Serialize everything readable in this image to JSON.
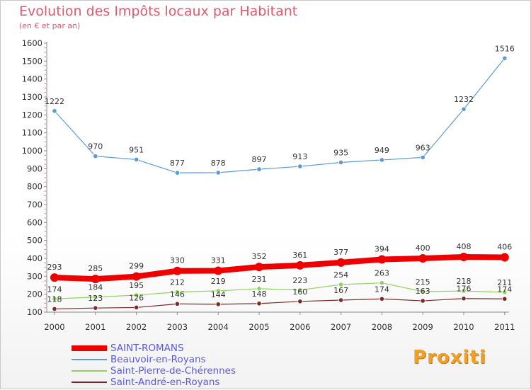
{
  "chart_data": {
    "type": "line",
    "title": "Evolution des Impôts locaux par Habitant",
    "subtitle": "(en € et par an)",
    "xlabel": "",
    "ylabel": "",
    "ylim": [
      100,
      1600
    ],
    "yticks": [
      100,
      200,
      300,
      400,
      500,
      600,
      700,
      800,
      900,
      1000,
      1100,
      1200,
      1300,
      1400,
      1500,
      1600
    ],
    "grid": false,
    "legend_position": "bottom-left",
    "categories": [
      "2000",
      "2001",
      "2002",
      "2003",
      "2004",
      "2005",
      "2006",
      "2007",
      "2008",
      "2009",
      "2010",
      "2011"
    ],
    "series": [
      {
        "name": "SAINT-ROMANS",
        "color": "#ee0000",
        "values": [
          293,
          285,
          299,
          330,
          331,
          352,
          361,
          377,
          394,
          400,
          408,
          406
        ]
      },
      {
        "name": "Beauvoir-en-Royans",
        "color": "#5b9bd5",
        "values": [
          1222,
          970,
          951,
          877,
          878,
          897,
          913,
          935,
          949,
          963,
          1232,
          1516
        ]
      },
      {
        "name": "Saint-Pierre-de-Chérennes",
        "color": "#8fd45e",
        "values": [
          174,
          184,
          195,
          212,
          219,
          231,
          223,
          254,
          263,
          215,
          218,
          211
        ]
      },
      {
        "name": "Saint-André-en-Royans",
        "color": "#7a2a2a",
        "values": [
          118,
          123,
          126,
          146,
          144,
          148,
          160,
          167,
          174,
          163,
          176,
          174
        ]
      }
    ]
  },
  "brand": {
    "logo_text": "Proxiti"
  }
}
